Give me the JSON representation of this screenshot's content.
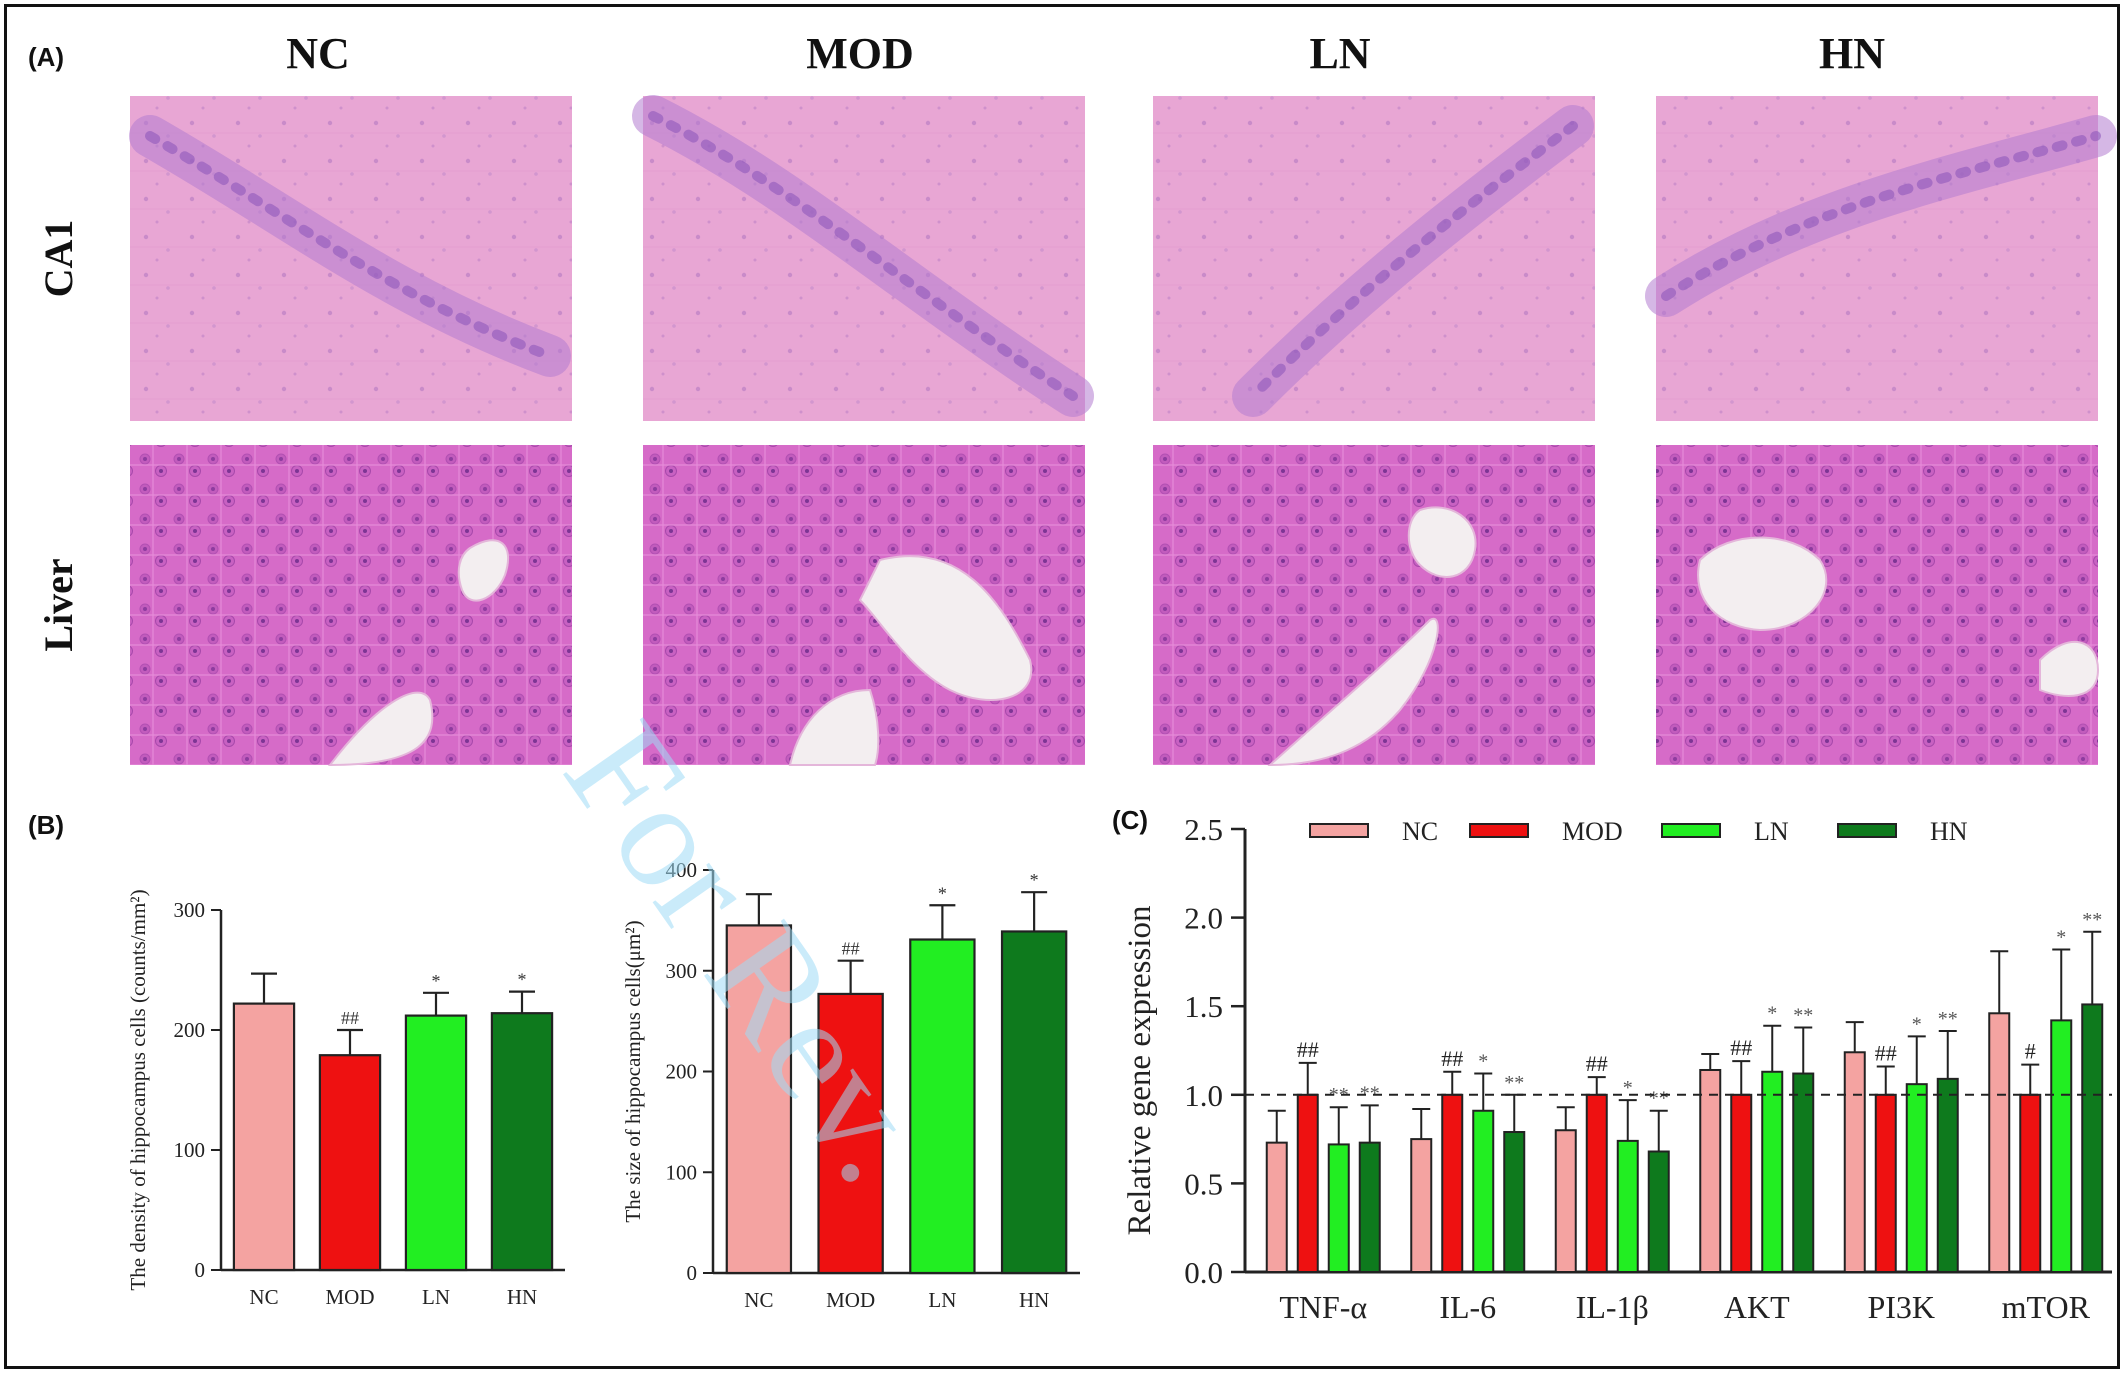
{
  "panels": {
    "a_label": "(A)",
    "b_label": "(B)",
    "c_label": "(C)"
  },
  "histology": {
    "column_titles": [
      "NC",
      "MOD",
      "LN",
      "HN"
    ],
    "row_titles": [
      "CA1",
      "Liver"
    ]
  },
  "colors": {
    "NC": "#f4a3a1",
    "MOD": "#ee1111",
    "LN": "#22ee22",
    "HN": "#0e7a1d",
    "ca1_background": "#e7a4d3",
    "liver_background": "#d96bc9",
    "watermark": "#9fdcf6"
  },
  "watermark_text": "For Rev.",
  "chart_data": [
    {
      "type": "bar",
      "panel": "B-left",
      "categories": [
        "NC",
        "MOD",
        "LN",
        "HN"
      ],
      "values": [
        222,
        179,
        212,
        214
      ],
      "errors": [
        25,
        21,
        19,
        18
      ],
      "annotations": [
        "",
        "##",
        "*",
        "*"
      ],
      "ylabel": "The density of hippocampus cells (counts/mm²)",
      "yticks": [
        "0",
        "100",
        "200",
        "300"
      ],
      "ylim": [
        0,
        300
      ]
    },
    {
      "type": "bar",
      "panel": "B-right",
      "categories": [
        "NC",
        "MOD",
        "LN",
        "HN"
      ],
      "values": [
        345,
        277,
        331,
        339
      ],
      "errors": [
        31,
        33,
        34,
        39
      ],
      "annotations": [
        "",
        "##",
        "*",
        "*"
      ],
      "ylabel": "The size of hippocampus cells(μm²)",
      "yticks": [
        "0",
        "100",
        "200",
        "300",
        "400"
      ],
      "ylim": [
        0,
        400
      ]
    },
    {
      "type": "bar",
      "panel": "C",
      "categories": [
        "TNF-α",
        "IL-6",
        "IL-1β",
        "AKT",
        "PI3K",
        "mTOR"
      ],
      "series": [
        {
          "name": "NC",
          "values": [
            0.73,
            0.75,
            0.8,
            1.14,
            1.24,
            1.46
          ],
          "errors": [
            0.18,
            0.17,
            0.13,
            0.09,
            0.17,
            0.35
          ],
          "annotations": [
            "",
            "",
            "",
            "",
            "",
            ""
          ]
        },
        {
          "name": "MOD",
          "values": [
            1.0,
            1.0,
            1.0,
            1.0,
            1.0,
            1.0
          ],
          "errors": [
            0.18,
            0.13,
            0.1,
            0.19,
            0.16,
            0.17
          ],
          "annotations": [
            "##",
            "##",
            "##",
            "##",
            "##",
            "#"
          ]
        },
        {
          "name": "LN",
          "values": [
            0.72,
            0.91,
            0.74,
            1.13,
            1.06,
            1.42
          ],
          "errors": [
            0.21,
            0.21,
            0.23,
            0.26,
            0.27,
            0.4
          ],
          "annotations": [
            "**",
            "*",
            "*",
            "*",
            "*",
            "*"
          ]
        },
        {
          "name": "HN",
          "values": [
            0.73,
            0.79,
            0.68,
            1.12,
            1.09,
            1.51
          ],
          "errors": [
            0.21,
            0.21,
            0.23,
            0.26,
            0.27,
            0.41
          ],
          "annotations": [
            "**",
            "**",
            "**",
            "**",
            "**",
            "**"
          ]
        }
      ],
      "reference_line": 1.0,
      "ylabel": "Relative gene expression",
      "yticks": [
        "0.0",
        "0.5",
        "1.0",
        "1.5",
        "2.0",
        "2.5"
      ],
      "ylim": [
        0,
        2.5
      ],
      "legend": [
        "NC",
        "MOD",
        "LN",
        "HN"
      ],
      "legend_position": "top"
    }
  ]
}
